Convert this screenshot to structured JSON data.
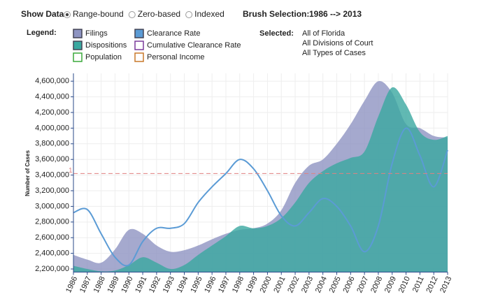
{
  "controls": {
    "show_data_label": "Show Data:",
    "options": [
      {
        "label": "Range-bound",
        "selected": true
      },
      {
        "label": "Zero-based",
        "selected": false
      },
      {
        "label": "Indexed",
        "selected": false
      }
    ],
    "brush_label": "Brush Selection:",
    "brush_value": "1986 --> 2013",
    "legend_label": "Legend:",
    "selected_label": "Selected:",
    "selected_values": [
      "All of Florida",
      "All Divisions of Court",
      "All Types of Cases"
    ]
  },
  "chart_data": {
    "type": "area",
    "y_label": "Number of Cases",
    "categories": [
      "1986",
      "1987",
      "1988",
      "1989",
      "1990",
      "1991",
      "1992",
      "1993",
      "1994",
      "1995",
      "1996",
      "1997",
      "1998",
      "1999",
      "2000",
      "2001",
      "2002",
      "2003",
      "2004",
      "2005",
      "2006",
      "2007",
      "2008",
      "2009",
      "2010",
      "2011",
      "2012",
      "2013"
    ],
    "series": [
      {
        "name": "Filings",
        "color": "#8e94c2",
        "kind": "area",
        "values": [
          2380000,
          2320000,
          2280000,
          2450000,
          2700000,
          2650000,
          2500000,
          2420000,
          2440000,
          2500000,
          2580000,
          2650000,
          2700000,
          2720000,
          2780000,
          2950000,
          3300000,
          3520000,
          3600000,
          3800000,
          4050000,
          4350000,
          4600000,
          4450000,
          4050000,
          4000000,
          3900000,
          3880000
        ]
      },
      {
        "name": "Dispositions",
        "color": "#3aa8a0",
        "kind": "area",
        "values": [
          2240000,
          2200000,
          2170000,
          2180000,
          2250000,
          2350000,
          2280000,
          2200000,
          2250000,
          2380000,
          2500000,
          2620000,
          2750000,
          2720000,
          2750000,
          2850000,
          3050000,
          3300000,
          3450000,
          3550000,
          3620000,
          3700000,
          4150000,
          4520000,
          4300000,
          3950000,
          3850000,
          3900000
        ]
      },
      {
        "name": "Clearance Rate",
        "color": "#5b9bd5",
        "kind": "line",
        "values": [
          2920000,
          2960000,
          2650000,
          2350000,
          2250000,
          2550000,
          2720000,
          2720000,
          2780000,
          3050000,
          3250000,
          3420000,
          3600000,
          3480000,
          3200000,
          2880000,
          2750000,
          2920000,
          3100000,
          3000000,
          2750000,
          2420000,
          2750000,
          3550000,
          4000000,
          3650000,
          3250000,
          3720000
        ]
      }
    ],
    "legend_extra": [
      {
        "name": "Population",
        "color": "#3aa83a"
      },
      {
        "name": "Cumulative Clearance Rate",
        "color": "#7a3a9a"
      },
      {
        "name": "Personal Income",
        "color": "#c8782a"
      }
    ],
    "reference_line": {
      "value": 3420000,
      "label": "1",
      "color": "#e08080"
    },
    "ylim": [
      2160000,
      4700000
    ],
    "yticks": [
      {
        "value": 2200000,
        "label": "2,200,000"
      },
      {
        "value": 2400000,
        "label": "2,400,000"
      },
      {
        "value": 2600000,
        "label": "2,600,000"
      },
      {
        "value": 2800000,
        "label": "2,800,000"
      },
      {
        "value": 3000000,
        "label": "3,000,000"
      },
      {
        "value": 3200000,
        "label": "3,200,000"
      },
      {
        "value": 3400000,
        "label": "3,400,000"
      },
      {
        "value": 3600000,
        "label": "3,600,000"
      },
      {
        "value": 3800000,
        "label": "3,800,000"
      },
      {
        "value": 4000000,
        "label": "4,000,000"
      },
      {
        "value": 4200000,
        "label": "4,200,000"
      },
      {
        "value": 4400000,
        "label": "4,400,000"
      },
      {
        "value": 4600000,
        "label": "4,600,000"
      }
    ],
    "grid": true
  }
}
